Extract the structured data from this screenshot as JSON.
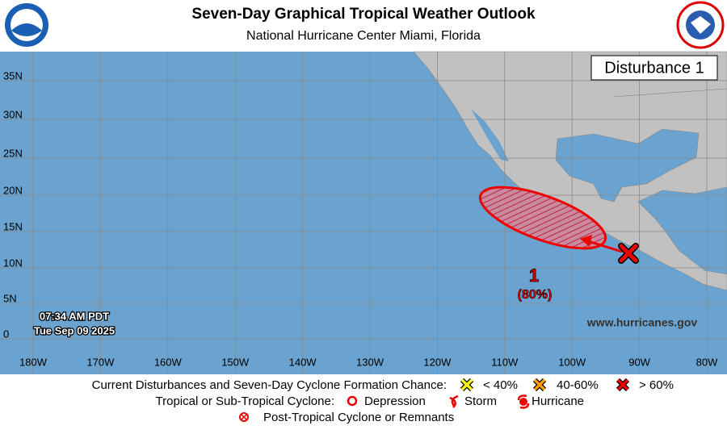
{
  "header": {
    "title": "Seven-Day Graphical Tropical Weather Outlook",
    "subtitle": "National Hurricane Center  Miami, Florida"
  },
  "map": {
    "label_box": "Disturbance 1",
    "lat_labels": [
      "35N",
      "30N",
      "25N",
      "20N",
      "15N",
      "10N",
      "5N",
      "0"
    ],
    "lon_labels": [
      "180W",
      "170W",
      "160W",
      "150W",
      "140W",
      "130W",
      "120W",
      "110W",
      "100W",
      "90W",
      "80W"
    ],
    "timestamp": [
      "07:34 AM PDT",
      "Tue Sep 09 2025"
    ],
    "website": "www.hurricanes.gov",
    "disturbance": {
      "id": "1",
      "chance": "(80%)"
    }
  },
  "legend": {
    "disturbances": {
      "label": "Current Disturbances and Seven-Day Cyclone Formation Chance:",
      "items": [
        "< 40%",
        "40-60%",
        "> 60%"
      ]
    },
    "cyclones": {
      "label": "Tropical or Sub-Tropical Cyclone:",
      "items": [
        "Depression",
        "Storm",
        "Hurricane"
      ]
    },
    "post_tropical": "Post-Tropical Cyclone or Remnants"
  }
}
